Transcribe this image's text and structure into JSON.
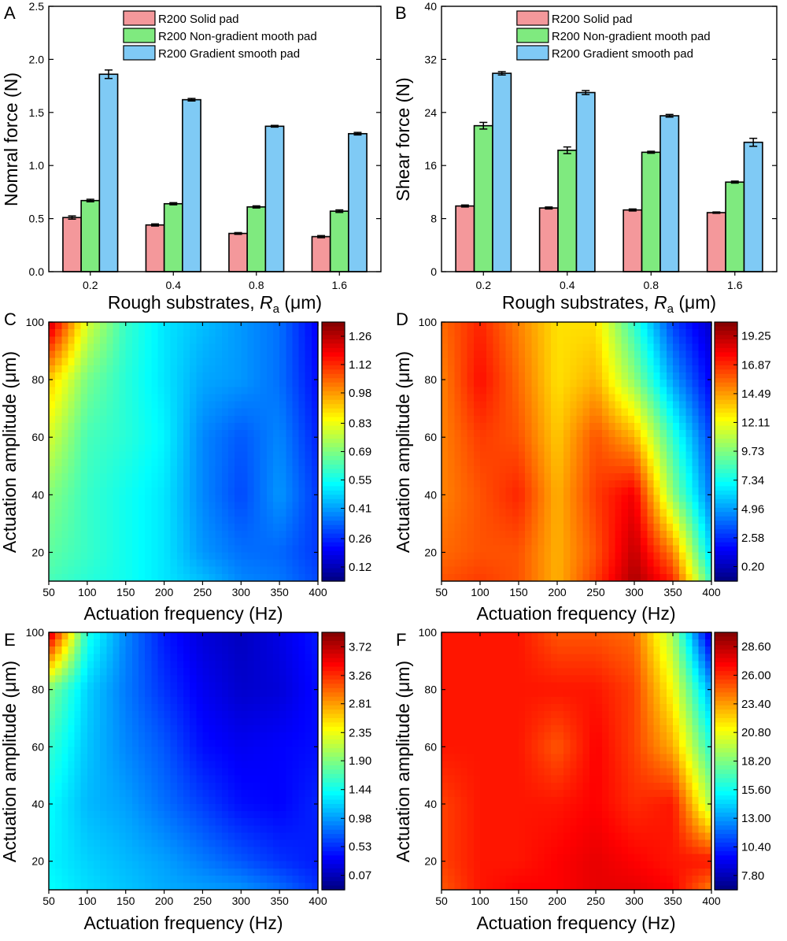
{
  "chart_data": [
    {
      "panel": "A",
      "type": "bar",
      "categories": [
        "0.2",
        "0.4",
        "0.8",
        "1.6"
      ],
      "xlabel": "Rough substrates, R_a (μm)",
      "xlabel_main": "Rough substrates, ",
      "xlabel_var": "R",
      "xlabel_sub": "a",
      "xlabel_unit": " (μm)",
      "ylabel": "Nomral force (N)",
      "ylim": [
        0,
        2.5
      ],
      "yticks": [
        "0.0",
        "0.5",
        "1.0",
        "1.5",
        "2.0",
        "2.5"
      ],
      "legend_position": "top-center",
      "series": [
        {
          "name": "R200 Solid pad",
          "color": "#F4989B",
          "values": [
            0.51,
            0.44,
            0.36,
            0.33
          ],
          "errors": [
            0.015,
            0.01,
            0.008,
            0.01
          ]
        },
        {
          "name": "R200 Non-gradient mooth pad",
          "color": "#7FEA7F",
          "values": [
            0.67,
            0.64,
            0.61,
            0.57
          ],
          "errors": [
            0.012,
            0.01,
            0.01,
            0.012
          ]
        },
        {
          "name": "R200 Gradient smooth pad",
          "color": "#7FCAF5",
          "values": [
            1.86,
            1.62,
            1.37,
            1.3
          ],
          "errors": [
            0.04,
            0.012,
            0.008,
            0.012
          ]
        }
      ]
    },
    {
      "panel": "B",
      "type": "bar",
      "categories": [
        "0.2",
        "0.4",
        "0.8",
        "1.6"
      ],
      "xlabel": "Rough substrates, R_a (μm)",
      "xlabel_main": "Rough substrates, ",
      "xlabel_var": "R",
      "xlabel_sub": "a",
      "xlabel_unit": " (μm)",
      "ylabel": "Shear force (N)",
      "ylim": [
        0,
        40
      ],
      "yticks": [
        "0",
        "8",
        "16",
        "24",
        "32",
        "40"
      ],
      "legend_position": "top-center",
      "series": [
        {
          "name": "R200 Solid pad",
          "color": "#F4989B",
          "values": [
            9.9,
            9.6,
            9.3,
            8.9
          ],
          "errors": [
            0.15,
            0.15,
            0.15,
            0.1
          ]
        },
        {
          "name": "R200 Non-gradient mooth pad",
          "color": "#7FEA7F",
          "values": [
            22.0,
            18.3,
            18.0,
            13.5
          ],
          "errors": [
            0.5,
            0.5,
            0.15,
            0.15
          ]
        },
        {
          "name": "R200 Gradient smooth pad",
          "color": "#7FCAF5",
          "values": [
            29.9,
            27.0,
            23.5,
            19.5
          ],
          "errors": [
            0.25,
            0.3,
            0.2,
            0.6
          ]
        }
      ]
    },
    {
      "panel": "C",
      "type": "heatmap",
      "xlabel": "Actuation frequency (Hz)",
      "ylabel": "Actuation amplitude (μm)",
      "x": [
        50,
        100,
        150,
        200,
        250,
        300,
        350,
        400
      ],
      "y": [
        10,
        20,
        40,
        60,
        80,
        100
      ],
      "xticks": [
        "50",
        "100",
        "150",
        "200",
        "250",
        "300",
        "350",
        "400"
      ],
      "yticks": [
        "20",
        "40",
        "60",
        "80",
        "100"
      ],
      "colorbar_ticks": [
        "0.12",
        "0.26",
        "0.41",
        "0.55",
        "0.69",
        "0.83",
        "0.98",
        "1.12",
        "1.26"
      ],
      "zlim": [
        0.05,
        1.33
      ],
      "z": [
        [
          0.62,
          0.58,
          0.55,
          0.5,
          0.45,
          0.38,
          0.36,
          0.3
        ],
        [
          0.65,
          0.6,
          0.55,
          0.5,
          0.4,
          0.35,
          0.34,
          0.28
        ],
        [
          0.7,
          0.6,
          0.55,
          0.5,
          0.38,
          0.3,
          0.4,
          0.28
        ],
        [
          0.8,
          0.62,
          0.58,
          0.52,
          0.38,
          0.32,
          0.38,
          0.25
        ],
        [
          0.92,
          0.68,
          0.58,
          0.5,
          0.42,
          0.4,
          0.35,
          0.22
        ],
        [
          1.25,
          0.8,
          0.6,
          0.5,
          0.45,
          0.4,
          0.35,
          0.2
        ]
      ]
    },
    {
      "panel": "D",
      "type": "heatmap",
      "xlabel": "Actuation frequency (Hz)",
      "ylabel": "Actuation amplitude (μm)",
      "x": [
        50,
        100,
        150,
        200,
        250,
        300,
        350,
        400
      ],
      "y": [
        10,
        20,
        40,
        60,
        80,
        100
      ],
      "xticks": [
        "50",
        "100",
        "150",
        "200",
        "250",
        "300",
        "350",
        "400"
      ],
      "yticks": [
        "20",
        "40",
        "60",
        "80",
        "100"
      ],
      "colorbar_ticks": [
        "0.20",
        "2.58",
        "4.96",
        "7.34",
        "9.73",
        "12.11",
        "14.49",
        "16.87",
        "19.25"
      ],
      "zlim": [
        -1.0,
        20.4
      ],
      "z": [
        [
          16.0,
          16.5,
          16.0,
          14.0,
          16.5,
          19.5,
          17.0,
          8.0
        ],
        [
          15.5,
          16.0,
          16.0,
          14.0,
          16.0,
          19.0,
          15.0,
          6.0
        ],
        [
          15.0,
          16.0,
          17.0,
          14.0,
          16.5,
          18.0,
          10.0,
          4.0
        ],
        [
          15.0,
          16.5,
          16.0,
          13.5,
          16.0,
          14.0,
          8.0,
          3.0
        ],
        [
          15.0,
          17.5,
          15.5,
          13.0,
          14.0,
          10.0,
          5.0,
          1.5
        ],
        [
          15.5,
          17.0,
          15.0,
          13.0,
          13.0,
          8.0,
          3.0,
          0.5
        ]
      ]
    },
    {
      "panel": "E",
      "type": "heatmap",
      "xlabel": "Actuation frequency (Hz)",
      "ylabel": "Actuation amplitude (μm)",
      "x": [
        50,
        100,
        150,
        200,
        250,
        300,
        350,
        400
      ],
      "y": [
        10,
        20,
        40,
        60,
        80,
        100
      ],
      "xticks": [
        "50",
        "100",
        "150",
        "200",
        "250",
        "300",
        "350",
        "400"
      ],
      "yticks": [
        "20",
        "40",
        "60",
        "80",
        "100"
      ],
      "colorbar_ticks": [
        "0.07",
        "0.53",
        "0.98",
        "1.44",
        "1.90",
        "2.35",
        "2.81",
        "3.26",
        "3.72"
      ],
      "zlim": [
        -0.16,
        3.95
      ],
      "z": [
        [
          1.4,
          1.25,
          1.15,
          1.05,
          1.0,
          0.95,
          0.8,
          0.55
        ],
        [
          1.35,
          1.2,
          1.1,
          1.0,
          0.85,
          0.7,
          0.55,
          0.45
        ],
        [
          1.4,
          1.1,
          1.0,
          0.8,
          0.6,
          0.4,
          0.35,
          0.5
        ],
        [
          1.6,
          1.15,
          0.9,
          0.7,
          0.4,
          0.3,
          0.35,
          0.4
        ],
        [
          1.9,
          1.2,
          0.85,
          0.55,
          0.3,
          0.15,
          0.2,
          0.4
        ],
        [
          3.7,
          1.5,
          0.9,
          0.45,
          0.2,
          0.1,
          0.25,
          0.45
        ]
      ]
    },
    {
      "panel": "F",
      "type": "heatmap",
      "xlabel": "Actuation frequency (Hz)",
      "ylabel": "Actuation amplitude (μm)",
      "x": [
        50,
        100,
        150,
        200,
        250,
        300,
        350,
        400
      ],
      "y": [
        10,
        20,
        40,
        60,
        80,
        100
      ],
      "xticks": [
        "50",
        "100",
        "150",
        "200",
        "250",
        "300",
        "350",
        "400"
      ],
      "yticks": [
        "20",
        "40",
        "60",
        "80",
        "100"
      ],
      "colorbar_ticks": [
        "7.80",
        "10.40",
        "13.00",
        "15.60",
        "18.20",
        "20.80",
        "23.40",
        "26.00",
        "28.60"
      ],
      "zlim": [
        6.5,
        29.9
      ],
      "z": [
        [
          25.0,
          26.5,
          27.0,
          27.0,
          27.5,
          27.5,
          27.0,
          24.0
        ],
        [
          25.5,
          26.5,
          26.5,
          27.0,
          27.5,
          27.0,
          26.5,
          26.5
        ],
        [
          25.5,
          26.5,
          26.5,
          26.5,
          27.0,
          26.0,
          26.5,
          19.0
        ],
        [
          26.5,
          26.5,
          26.5,
          25.0,
          27.0,
          25.5,
          23.0,
          16.0
        ],
        [
          26.5,
          26.5,
          26.5,
          26.5,
          26.5,
          25.5,
          21.0,
          13.0
        ],
        [
          26.5,
          26.5,
          26.5,
          25.0,
          25.0,
          24.5,
          19.0,
          8.0
        ]
      ]
    }
  ]
}
